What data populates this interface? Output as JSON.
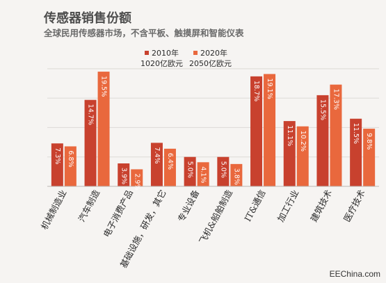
{
  "chart_data": {
    "type": "bar",
    "title": "传感器销售份额",
    "subtitle": "全球民用传感器市场，不含平板、触摸屏和智能仪表",
    "categories": [
      "机械制造业",
      "汽车制造",
      "电子消费产品",
      "基础设施，研发，其它",
      "专业设备",
      "飞机&船舶制造",
      "IT&通信",
      "加工行业",
      "建筑技术",
      "医疗技术"
    ],
    "series": [
      {
        "name": "2010年",
        "total": "1020亿欧元",
        "color": "#c8412e",
        "values": [
          7.3,
          14.7,
          3.9,
          7.4,
          5.0,
          5.0,
          18.7,
          11.1,
          15.5,
          11.5
        ],
        "labels": [
          "7.3%",
          "14.7%",
          "3.9%",
          "7.4%",
          "5.0%",
          "5.0%",
          "18.7%",
          "11.1%",
          "15.5%",
          "11.5%"
        ]
      },
      {
        "name": "2020年",
        "total": "2050亿欧元",
        "color": "#e9683d",
        "values": [
          6.8,
          19.5,
          2.9,
          6.4,
          4.1,
          3.8,
          19.1,
          10.2,
          17.3,
          9.8
        ],
        "labels": [
          "6.8%",
          "19.5%",
          "2.9%",
          "6.4%",
          "4.1%",
          "3.8%",
          "19.1%",
          "10.2%",
          "17.3%",
          "9.8%"
        ]
      }
    ],
    "ylim": [
      0,
      24
    ],
    "grid": true,
    "legend_position": "top-center"
  },
  "watermark": "EEChina.com"
}
